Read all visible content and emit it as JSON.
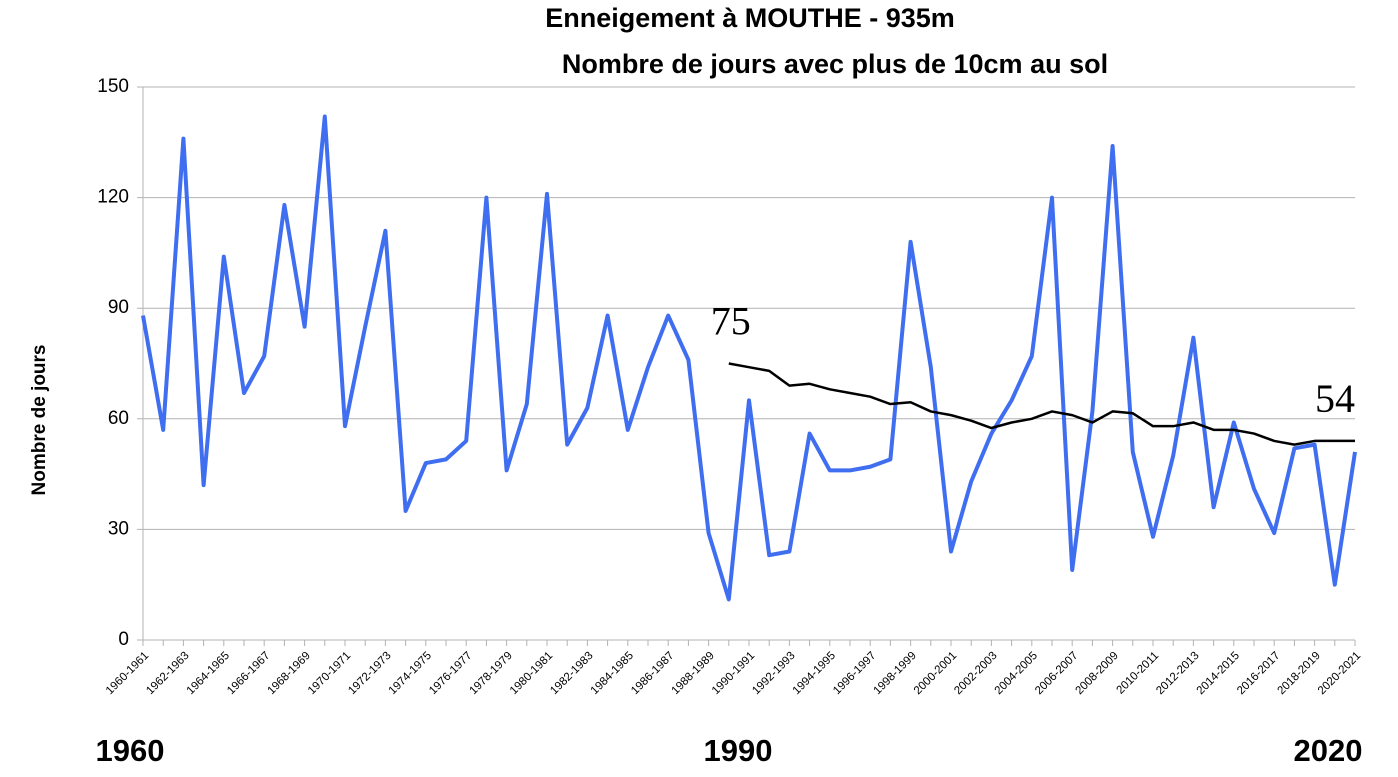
{
  "chart_data": {
    "type": "line",
    "title": "Enneigement  à MOUTHE - 935m",
    "subtitle": "Nombre de jours avec plus de 10cm au sol",
    "y_label": "Nombre de jours",
    "period_labels": [
      "1960",
      "1990",
      "2020"
    ],
    "categories": [
      "1960-1961",
      null,
      "1962-1963",
      null,
      "1964-1965",
      null,
      "1966-1967",
      null,
      "1968-1969",
      null,
      "1970-1971",
      null,
      "1972-1973",
      null,
      "1974-1975",
      null,
      "1976-1977",
      null,
      "1978-1979",
      null,
      "1980-1981",
      null,
      "1982-1983",
      null,
      "1984-1985",
      null,
      "1986-1987",
      null,
      "1988-1989",
      null,
      "1990-1991",
      null,
      "1992-1993",
      null,
      "1994-1995",
      null,
      "1996-1997",
      null,
      "1998-1999",
      null,
      "2000-2001",
      null,
      "2002-2003",
      null,
      "2004-2005",
      null,
      "2006-2007",
      null,
      "2008-2009",
      null,
      "2010-2011",
      null,
      "2012-2013",
      null,
      "2014-2015",
      null,
      "2016-2017",
      null,
      "2018-2019",
      null,
      "2020-2021"
    ],
    "series": [
      {
        "color": "#3f6ef0",
        "values": [
          88,
          57,
          136,
          42,
          104,
          67,
          77,
          118,
          85,
          142,
          58,
          85,
          111,
          35,
          48,
          49,
          54,
          120,
          46,
          64,
          121,
          53,
          63,
          88,
          57,
          74,
          88,
          76,
          29,
          11,
          65,
          23,
          24,
          56,
          46,
          46,
          47,
          49,
          108,
          74,
          24,
          43,
          56,
          65,
          77,
          120,
          19,
          62,
          134,
          51,
          28,
          50,
          82,
          36,
          59,
          41,
          29,
          52,
          53,
          15,
          51
        ]
      },
      {
        "color": "#000000",
        "values": [
          null,
          null,
          null,
          null,
          null,
          null,
          null,
          null,
          null,
          null,
          null,
          null,
          null,
          null,
          null,
          null,
          null,
          null,
          null,
          null,
          null,
          null,
          null,
          null,
          null,
          null,
          null,
          null,
          null,
          75,
          74,
          73,
          69,
          69.5,
          68,
          67,
          66,
          64,
          64.5,
          62,
          61,
          59.5,
          57.5,
          59,
          60,
          62,
          61,
          59,
          62,
          61.5,
          58,
          58,
          59,
          57,
          57,
          56,
          54,
          53,
          54,
          54,
          54
        ],
        "value_labels": [
          null,
          null,
          null,
          null,
          null,
          null,
          null,
          null,
          null,
          null,
          null,
          null,
          null,
          null,
          null,
          null,
          null,
          null,
          null,
          null,
          null,
          null,
          null,
          null,
          null,
          null,
          null,
          null,
          null,
          "75",
          null,
          null,
          null,
          null,
          null,
          null,
          null,
          null,
          null,
          null,
          null,
          null,
          null,
          null,
          null,
          null,
          null,
          null,
          null,
          null,
          null,
          null,
          null,
          null,
          null,
          null,
          null,
          null,
          null,
          null,
          "54"
        ]
      }
    ],
    "ylim": [
      0,
      150
    ],
    "yticks": [
      0,
      30,
      60,
      90,
      120,
      150
    ],
    "grid": true
  }
}
